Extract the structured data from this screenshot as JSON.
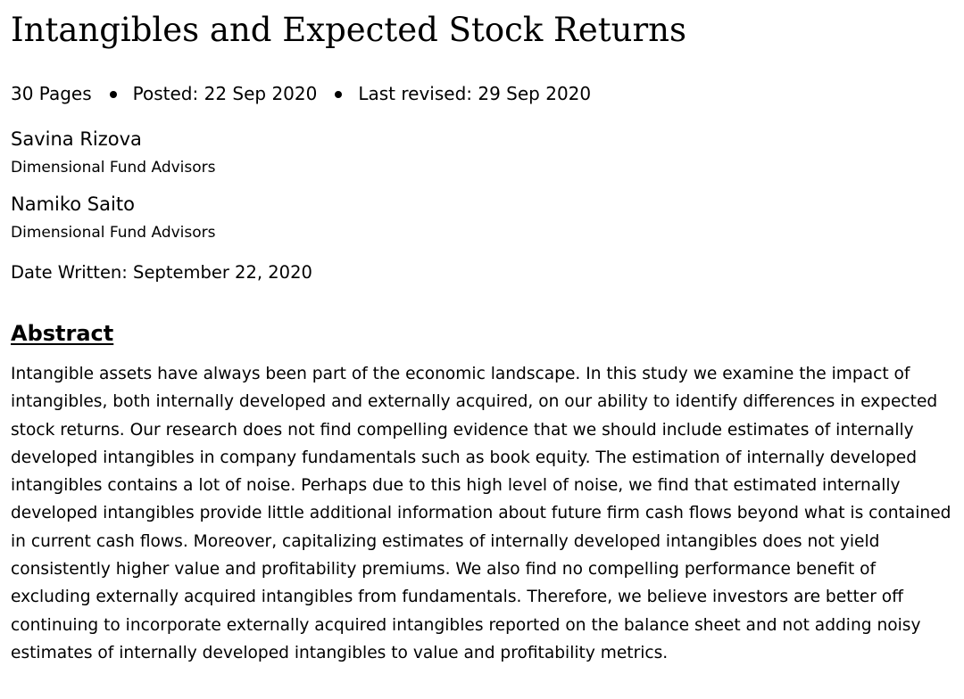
{
  "paper": {
    "title": "Intangibles and Expected Stock Returns",
    "pages": "30 Pages",
    "posted": "Posted: 22 Sep 2020",
    "last_revised": "Last revised: 29 Sep 2020"
  },
  "authors": [
    {
      "name": "Savina Rizova",
      "affiliation": "Dimensional Fund Advisors"
    },
    {
      "name": "Namiko Saito",
      "affiliation": "Dimensional Fund Advisors"
    }
  ],
  "date_written": "Date Written: September 22, 2020",
  "abstract": {
    "heading": "Abstract",
    "text": "Intangible assets have always been part of the economic landscape. In this study we examine the impact of intangibles, both internally developed and externally acquired, on our ability to identify differences in expected stock returns. Our research does not find compelling evidence that we should include estimates of internally developed intangibles in company fundamentals such as book equity. The estimation of internally developed intangibles contains a lot of noise. Perhaps due to this high level of noise, we find that estimated internally developed intangibles provide little additional information about future firm cash flows beyond what is contained in current cash flows. Moreover, capitalizing estimates of internally developed intangibles does not yield consistently higher value and profitability premiums. We also find no compelling performance benefit of excluding externally acquired intangibles from fundamentals. Therefore, we believe investors are better off continuing to incorporate externally acquired intangibles reported on the balance sheet and not adding noisy estimates of internally developed intangibles to value and profitability metrics."
  }
}
